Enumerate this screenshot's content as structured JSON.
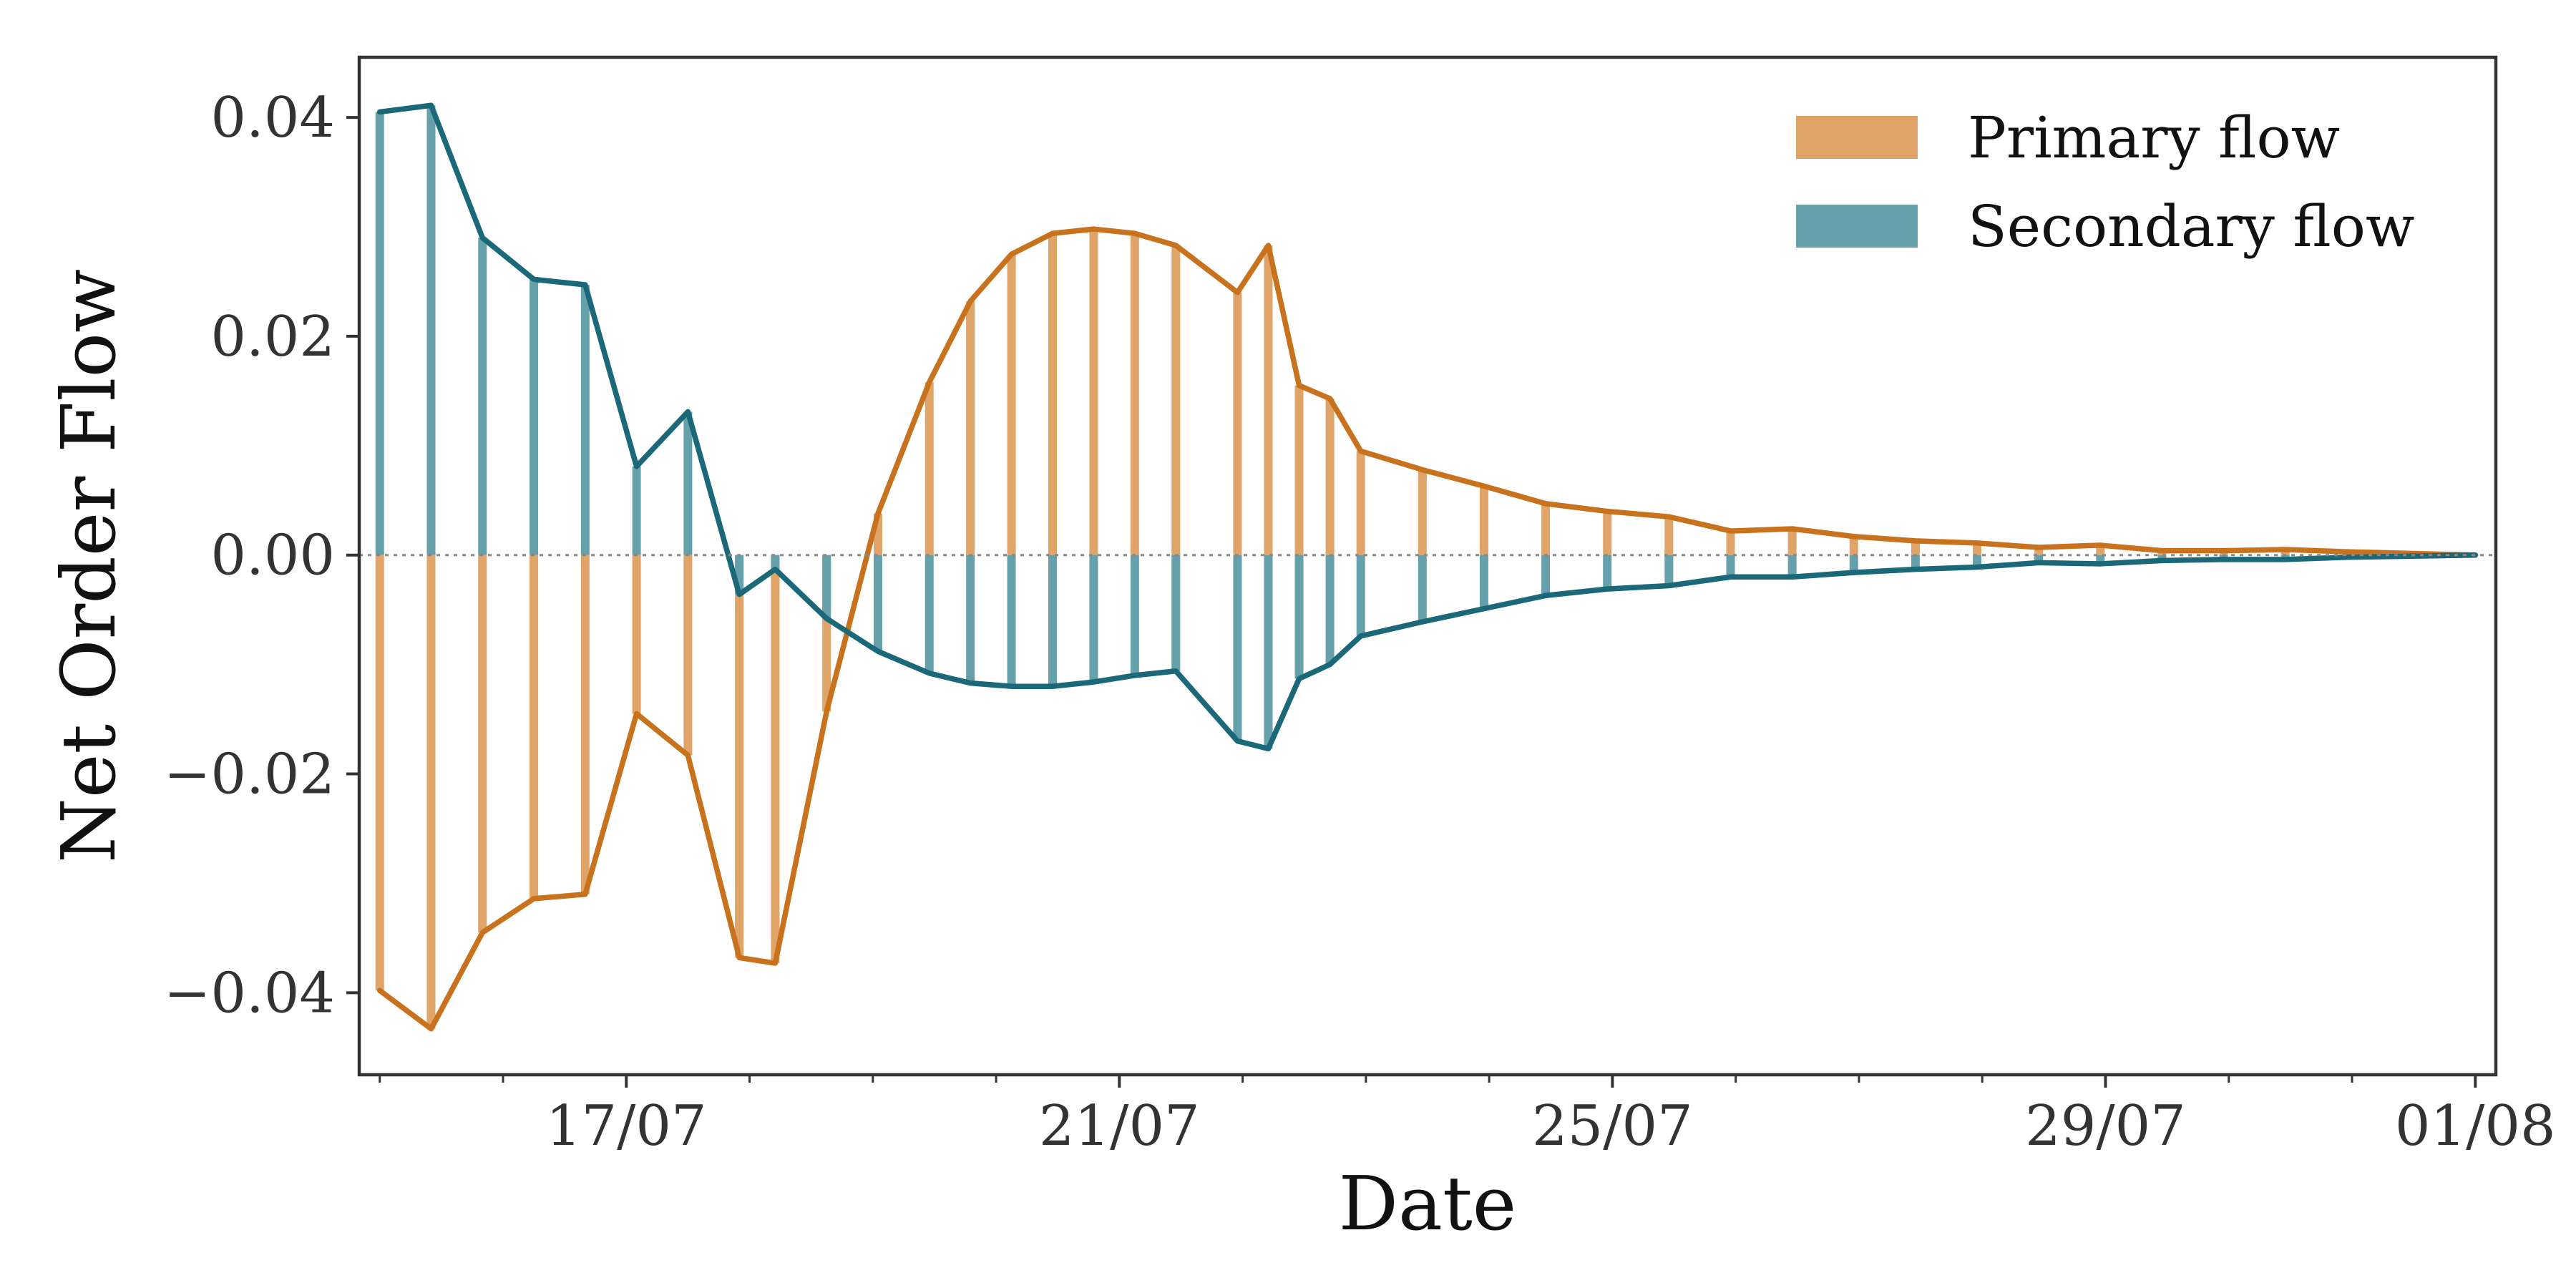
{
  "chart_data": {
    "type": "line",
    "xlabel": "Date",
    "ylabel": "Net Order Flow",
    "x_tick_labels": [
      {
        "date": "2025-07-17",
        "label": "17/07"
      },
      {
        "date": "2025-07-21",
        "label": "21/07"
      },
      {
        "date": "2025-07-25",
        "label": "25/07"
      },
      {
        "date": "2025-07-29",
        "label": "29/07"
      },
      {
        "date": "2025-08-01",
        "label": "01/08"
      }
    ],
    "y_ticks": [
      {
        "value": 0.04,
        "label": "0.04"
      },
      {
        "value": 0.02,
        "label": "0.02"
      },
      {
        "value": 0.0,
        "label": "0.00"
      },
      {
        "value": -0.02,
        "label": "−0.02"
      },
      {
        "value": -0.04,
        "label": "−0.04"
      }
    ],
    "xlim": [
      "2025-07-14T20:00",
      "2025-08-01T04:00"
    ],
    "ylim": [
      -0.0475,
      0.0455
    ],
    "zero_line": true,
    "grid": false,
    "legend_position": "top-right",
    "series": [
      {
        "name": "Primary flow",
        "color": "#c8721e",
        "bar_color": "#e0a468",
        "points": [
          [
            "2025-07-15T00:00",
            -0.0398
          ],
          [
            "2025-07-15T10:00",
            -0.0433
          ],
          [
            "2025-07-15T20:00",
            -0.0345
          ],
          [
            "2025-07-16T06:00",
            -0.0314
          ],
          [
            "2025-07-16T16:00",
            -0.031
          ],
          [
            "2025-07-17T02:00",
            -0.0145
          ],
          [
            "2025-07-17T12:00",
            -0.0183
          ],
          [
            "2025-07-17T22:00",
            -0.0368
          ],
          [
            "2025-07-18T05:00",
            -0.0373
          ],
          [
            "2025-07-18T15:00",
            -0.0143
          ],
          [
            "2025-07-19T01:00",
            0.0038
          ],
          [
            "2025-07-19T11:00",
            0.0158
          ],
          [
            "2025-07-19T19:00",
            0.0232
          ],
          [
            "2025-07-20T03:00",
            0.0275
          ],
          [
            "2025-07-20T11:00",
            0.0294
          ],
          [
            "2025-07-20T19:00",
            0.0298
          ],
          [
            "2025-07-21T03:00",
            0.0294
          ],
          [
            "2025-07-21T11:00",
            0.0283
          ],
          [
            "2025-07-21T23:00",
            0.024
          ],
          [
            "2025-07-22T05:00",
            0.0283
          ],
          [
            "2025-07-22T11:00",
            0.0155
          ],
          [
            "2025-07-22T17:00",
            0.0143
          ],
          [
            "2025-07-22T23:00",
            0.0095
          ],
          [
            "2025-07-23T11:00",
            0.0078
          ],
          [
            "2025-07-23T23:00",
            0.0063
          ],
          [
            "2025-07-24T11:00",
            0.0047
          ],
          [
            "2025-07-24T23:00",
            0.004
          ],
          [
            "2025-07-25T11:00",
            0.0035
          ],
          [
            "2025-07-25T23:00",
            0.0022
          ],
          [
            "2025-07-26T11:00",
            0.0024
          ],
          [
            "2025-07-26T23:00",
            0.0017
          ],
          [
            "2025-07-27T11:00",
            0.0013
          ],
          [
            "2025-07-27T23:00",
            0.0011
          ],
          [
            "2025-07-28T11:00",
            0.0007
          ],
          [
            "2025-07-28T23:00",
            0.0009
          ],
          [
            "2025-07-29T11:00",
            0.0004
          ],
          [
            "2025-07-29T23:00",
            0.0004
          ],
          [
            "2025-07-30T11:00",
            0.0005
          ],
          [
            "2025-07-30T23:00",
            0.0003
          ],
          [
            "2025-08-01T00:00",
            0.0
          ]
        ]
      },
      {
        "name": "Secondary flow",
        "color": "#1a6878",
        "bar_color": "#66a0ab",
        "points": [
          [
            "2025-07-15T00:00",
            0.0405
          ],
          [
            "2025-07-15T10:00",
            0.0411
          ],
          [
            "2025-07-15T20:00",
            0.029
          ],
          [
            "2025-07-16T06:00",
            0.0252
          ],
          [
            "2025-07-16T16:00",
            0.0247
          ],
          [
            "2025-07-17T02:00",
            0.0081
          ],
          [
            "2025-07-17T12:00",
            0.0131
          ],
          [
            "2025-07-17T22:00",
            -0.0036
          ],
          [
            "2025-07-18T05:00",
            -0.0013
          ],
          [
            "2025-07-18T15:00",
            -0.0058
          ],
          [
            "2025-07-19T01:00",
            -0.0088
          ],
          [
            "2025-07-19T11:00",
            -0.0108
          ],
          [
            "2025-07-19T19:00",
            -0.0117
          ],
          [
            "2025-07-20T03:00",
            -0.012
          ],
          [
            "2025-07-20T11:00",
            -0.012
          ],
          [
            "2025-07-20T19:00",
            -0.0116
          ],
          [
            "2025-07-21T03:00",
            -0.011
          ],
          [
            "2025-07-21T11:00",
            -0.0106
          ],
          [
            "2025-07-21T23:00",
            -0.017
          ],
          [
            "2025-07-22T05:00",
            -0.0177
          ],
          [
            "2025-07-22T11:00",
            -0.0113
          ],
          [
            "2025-07-22T17:00",
            -0.01
          ],
          [
            "2025-07-22T23:00",
            -0.0074
          ],
          [
            "2025-07-23T11:00",
            -0.0061
          ],
          [
            "2025-07-23T23:00",
            -0.0049
          ],
          [
            "2025-07-24T11:00",
            -0.0037
          ],
          [
            "2025-07-24T23:00",
            -0.0031
          ],
          [
            "2025-07-25T11:00",
            -0.0028
          ],
          [
            "2025-07-25T23:00",
            -0.002
          ],
          [
            "2025-07-26T11:00",
            -0.002
          ],
          [
            "2025-07-26T23:00",
            -0.0016
          ],
          [
            "2025-07-27T11:00",
            -0.0013
          ],
          [
            "2025-07-27T23:00",
            -0.0011
          ],
          [
            "2025-07-28T11:00",
            -0.0007
          ],
          [
            "2025-07-28T23:00",
            -0.0008
          ],
          [
            "2025-07-29T11:00",
            -0.0005
          ],
          [
            "2025-07-29T23:00",
            -0.0004
          ],
          [
            "2025-07-30T11:00",
            -0.0004
          ],
          [
            "2025-07-30T23:00",
            -0.0002
          ],
          [
            "2025-08-01T00:00",
            0.0
          ]
        ]
      }
    ]
  }
}
